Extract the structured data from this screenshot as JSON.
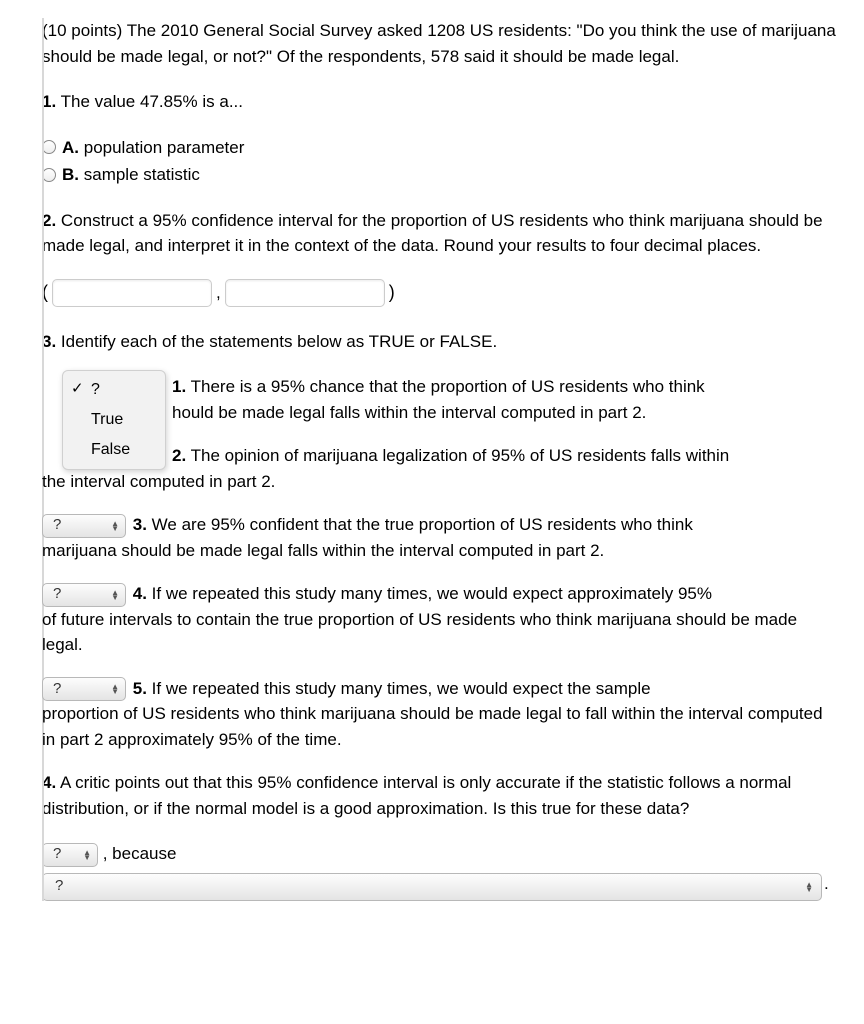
{
  "intro": "(10 points) The 2010 General Social Survey asked 1208 US residents: \"Do you think the use of marijuana should be made legal, or not?\" Of the respondents, 578 said it should be made legal.",
  "q1": {
    "num": "1.",
    "text": "The value 47.85% is a...",
    "optA_label": "A.",
    "optA_text": "population parameter",
    "optB_label": "B.",
    "optB_text": "sample statistic"
  },
  "q2": {
    "num": "2.",
    "text": "Construct a 95% confidence interval for the proportion of US residents who think marijuana should be made legal, and interpret it in the context of the data. Round your results to four decimal places.",
    "open": "(",
    "comma": ",",
    "close": ")",
    "lower": "",
    "upper": ""
  },
  "q3": {
    "num": "3.",
    "text": "Identify each of the statements below as TRUE or FALSE.",
    "dd_q": "?",
    "dd_true": "True",
    "dd_false": "False",
    "s1_num": "1.",
    "s1a": "There is a 95% chance that the proportion of US residents who think",
    "s1b": "hould be made legal falls within the interval computed in part 2.",
    "s2_num": "2.",
    "s2a": "The opinion of marijuana legalization of 95% of US residents falls within",
    "s2_rest": "the interval computed in part 2.",
    "s3_num": "3.",
    "s3a": "We are 95% confident that the true proportion of US residents who think",
    "s3_rest": "marijuana should be made legal falls within the interval computed in part 2.",
    "s4_num": "4.",
    "s4a": "If we repeated this study many times, we would expect approximately 95%",
    "s4_rest": "of future intervals to contain the true proportion of US residents who think marijuana should be made legal.",
    "s5_num": "5.",
    "s5a": "If we repeated this study many times, we would expect the sample",
    "s5_rest": "proportion of US residents who think marijuana should be made legal to fall within the interval computed in part 2 approximately 95% of the time.",
    "select_placeholder": "?"
  },
  "q4": {
    "num": "4.",
    "text": "A critic points out that this 95% confidence interval is only accurate if the statistic follows a normal distribution, or if the normal model is a good approximation. Is this true for these data?",
    "because": ", because",
    "select_placeholder": "?",
    "reason_placeholder": "?",
    "period": "."
  }
}
